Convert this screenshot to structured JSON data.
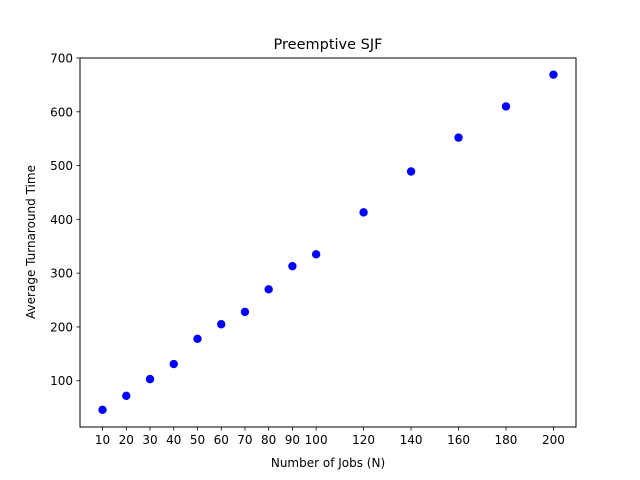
{
  "chart_data": {
    "type": "scatter",
    "title": "Preemptive SJF",
    "xlabel": "Number of Jobs (N)",
    "ylabel": "Average Turnaround Time",
    "x": [
      10,
      20,
      30,
      40,
      50,
      60,
      70,
      80,
      90,
      100,
      120,
      140,
      160,
      180,
      200
    ],
    "y": [
      46,
      72,
      103,
      131,
      178,
      205,
      228,
      270,
      313,
      335,
      413,
      489,
      552,
      610,
      669
    ],
    "xticks": [
      10,
      20,
      30,
      40,
      50,
      60,
      70,
      80,
      90,
      100,
      120,
      140,
      160,
      180,
      200
    ],
    "yticks": [
      100,
      200,
      300,
      400,
      500,
      600,
      700
    ],
    "xlim": [
      0.5,
      209.5
    ],
    "ylim": [
      14,
      700
    ],
    "grid": false,
    "marker_color": "#0000ff"
  }
}
